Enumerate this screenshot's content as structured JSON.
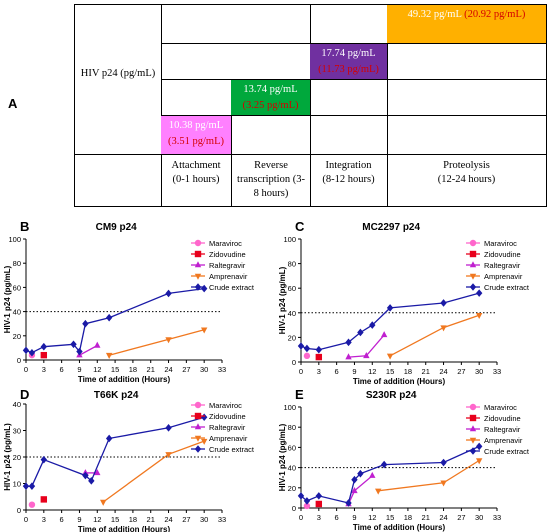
{
  "panel_a": {
    "letter": "A",
    "row_label": "HIV p24 (pg/mL)",
    "stages": [
      {
        "name": "Attachment",
        "time": "(0-1 hours)",
        "value": "10.38  pg/mL",
        "sd": "(3.51 pg/mL)",
        "color": "#ff80ff"
      },
      {
        "name": "Reverse transcription (3-8 hours)",
        "time": "",
        "value": "13.74  pg/mL",
        "sd": "(3.25 pg/mL)",
        "color": "#00a83c"
      },
      {
        "name": "Integration",
        "time": "(8-12 hours)",
        "value": "17.74 pg/mL",
        "sd": "(11.73 pg/mL)",
        "color": "#7030a0"
      },
      {
        "name": "Proteolysis",
        "time": "(12-24 hours)",
        "value": "49.32 pg/mL",
        "sd": "(20.92 pg/mL)",
        "color": "#ffb000"
      }
    ]
  },
  "legend_labels": [
    "Maraviroc",
    "Zidovudine",
    "Raltegravir",
    "Amprenavir",
    "Crude extract"
  ],
  "series_colors": [
    "#ff66cc",
    "#e8001c",
    "#c020d0",
    "#f07820",
    "#1a1aa6"
  ],
  "chart_data": [
    {
      "type": "line",
      "letter": "B",
      "title": "CM9 p24",
      "xlabel": "Time of addition (Hours)",
      "ylabel": "HIV-1 p24 (pg/mL)",
      "xlim": [
        0,
        33
      ],
      "ylim": [
        0,
        100
      ],
      "xticks": [
        0,
        3,
        6,
        9,
        12,
        15,
        18,
        21,
        24,
        27,
        30,
        33
      ],
      "yticks": [
        0,
        20,
        40,
        60,
        80,
        100
      ],
      "threshold": 40,
      "series": [
        {
          "name": "Maraviroc",
          "x": [
            1
          ],
          "y": [
            4
          ]
        },
        {
          "name": "Zidovudine",
          "x": [
            3
          ],
          "y": [
            4
          ]
        },
        {
          "name": "Raltegravir",
          "x": [
            9,
            12
          ],
          "y": [
            4,
            12
          ]
        },
        {
          "name": "Amprenavir",
          "x": [
            14,
            24,
            30
          ],
          "y": [
            4,
            17,
            25
          ]
        },
        {
          "name": "Crude extract",
          "x": [
            0,
            1,
            3,
            8,
            9,
            10,
            14,
            24,
            30
          ],
          "y": [
            8,
            6,
            11,
            13,
            7,
            30,
            35,
            55,
            59
          ]
        }
      ]
    },
    {
      "type": "line",
      "letter": "C",
      "title": "MC2297 p24",
      "xlabel": "Time of addition (Hours)",
      "ylabel": "HIV-1 p24 (pg/mL)",
      "xlim": [
        0,
        33
      ],
      "ylim": [
        0,
        100
      ],
      "xticks": [
        0,
        3,
        6,
        9,
        12,
        15,
        18,
        21,
        24,
        27,
        30,
        33
      ],
      "yticks": [
        0,
        20,
        40,
        60,
        80,
        100
      ],
      "threshold": 40,
      "series": [
        {
          "name": "Maraviroc",
          "x": [
            1
          ],
          "y": [
            5
          ]
        },
        {
          "name": "Zidovudine",
          "x": [
            3
          ],
          "y": [
            4
          ]
        },
        {
          "name": "Raltegravir",
          "x": [
            8,
            11,
            14
          ],
          "y": [
            4,
            5,
            22
          ]
        },
        {
          "name": "Amprenavir",
          "x": [
            15,
            24,
            30
          ],
          "y": [
            5,
            28,
            38
          ]
        },
        {
          "name": "Crude extract",
          "x": [
            0,
            1,
            3,
            8,
            10,
            12,
            15,
            24,
            30
          ],
          "y": [
            13,
            11,
            10,
            16,
            24,
            30,
            44,
            48,
            56
          ]
        }
      ]
    },
    {
      "type": "line",
      "letter": "D",
      "title": "T66K p24",
      "xlabel": "Time of addition (Hours)",
      "ylabel": "HIV-1 p24 (pg/mL)",
      "xlim": [
        0,
        33
      ],
      "ylim": [
        0,
        40
      ],
      "xticks": [
        0,
        3,
        6,
        9,
        12,
        15,
        18,
        21,
        24,
        27,
        30,
        33
      ],
      "yticks": [
        0,
        10,
        20,
        30,
        40
      ],
      "threshold": 20,
      "series": [
        {
          "name": "Maraviroc",
          "x": [
            1
          ],
          "y": [
            2
          ]
        },
        {
          "name": "Zidovudine",
          "x": [
            3
          ],
          "y": [
            4
          ]
        },
        {
          "name": "Raltegravir",
          "x": [
            10,
            12
          ],
          "y": [
            14,
            14
          ]
        },
        {
          "name": "Amprenavir",
          "x": [
            13,
            24,
            30
          ],
          "y": [
            3,
            21,
            26
          ]
        },
        {
          "name": "Crude extract",
          "x": [
            0,
            1,
            3,
            10,
            11,
            14,
            24,
            30
          ],
          "y": [
            9,
            9,
            19,
            13,
            11,
            27,
            31,
            35
          ]
        }
      ]
    },
    {
      "type": "line",
      "letter": "E",
      "title": "S230R p24",
      "xlabel": "Time of addition (Hours)",
      "ylabel": "HIV-1 p24 (pg/mL)",
      "xlim": [
        0,
        33
      ],
      "ylim": [
        0,
        100
      ],
      "xticks": [
        0,
        3,
        6,
        9,
        12,
        15,
        18,
        21,
        24,
        27,
        30,
        33
      ],
      "yticks": [
        0,
        20,
        40,
        60,
        80,
        100
      ],
      "threshold": 40,
      "series": [
        {
          "name": "Maraviroc",
          "x": [
            1
          ],
          "y": [
            2
          ]
        },
        {
          "name": "Zidovudine",
          "x": [
            3
          ],
          "y": [
            4
          ]
        },
        {
          "name": "Raltegravir",
          "x": [
            8,
            9,
            12
          ],
          "y": [
            4,
            17,
            32
          ]
        },
        {
          "name": "Amprenavir",
          "x": [
            13,
            24,
            30
          ],
          "y": [
            17,
            25,
            47
          ]
        },
        {
          "name": "Crude extract",
          "x": [
            0,
            1,
            3,
            8,
            9,
            10,
            14,
            24,
            30
          ],
          "y": [
            12,
            7,
            12,
            5,
            28,
            34,
            43,
            45,
            61
          ]
        }
      ]
    }
  ]
}
